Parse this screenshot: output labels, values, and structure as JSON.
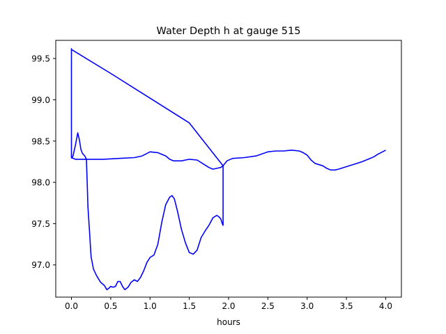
{
  "chart_data": {
    "type": "line",
    "title": "Water Depth h at gauge 515",
    "xlabel": "hours",
    "ylabel": "",
    "xlim": [
      -0.2,
      4.2
    ],
    "ylim": [
      96.61,
      99.72
    ],
    "xticks": [
      0.0,
      0.5,
      1.0,
      1.5,
      2.0,
      2.5,
      3.0,
      3.5,
      4.0
    ],
    "xtick_labels": [
      "0.0",
      "0.5",
      "1.0",
      "1.5",
      "2.0",
      "2.5",
      "3.0",
      "3.5",
      "4.0"
    ],
    "yticks": [
      97.0,
      97.5,
      98.0,
      98.5,
      99.0,
      99.5
    ],
    "ytick_labels": [
      "97.0",
      "97.5",
      "98.0",
      "98.5",
      "99.0",
      "99.5"
    ],
    "grid": false,
    "line_color": "#0000ff",
    "series": [
      {
        "x": [
          0.0,
          0.02,
          0.05,
          0.08,
          0.1,
          0.12,
          0.14,
          0.17,
          0.19,
          0.2,
          0.21,
          0.23,
          0.25,
          0.28,
          0.32,
          0.37,
          0.42,
          0.45,
          0.48,
          0.5,
          0.53,
          0.56,
          0.59,
          0.62,
          0.65,
          0.68,
          0.72,
          0.76,
          0.8,
          0.84,
          0.88,
          0.92,
          0.96,
          1.0,
          1.05,
          1.1,
          1.15,
          1.2,
          1.25,
          1.28,
          1.31,
          1.35,
          1.4,
          1.45,
          1.5,
          1.55,
          1.6,
          1.65,
          1.7,
          1.75,
          1.8,
          1.85,
          1.88,
          1.9,
          1.92,
          1.93,
          1.93,
          1.9,
          1.85,
          1.8,
          1.75,
          1.7,
          1.6,
          1.5,
          1.4,
          1.3,
          1.25,
          1.2,
          1.1,
          1.0,
          0.9,
          0.8,
          0.6,
          0.4,
          0.2,
          0.05,
          0.0,
          0.0,
          0.0,
          0.0,
          0.5,
          1.0,
          1.5,
          1.93,
          1.93,
          1.98,
          2.05,
          2.2,
          2.35,
          2.5,
          2.6,
          2.7,
          2.8,
          2.9,
          2.95,
          3.0,
          3.05,
          3.1,
          3.2,
          3.25,
          3.3,
          3.35,
          3.4,
          3.5,
          3.6,
          3.7,
          3.8,
          3.85,
          3.9,
          4.0
        ],
        "y": [
          98.29,
          98.32,
          98.45,
          98.6,
          98.52,
          98.4,
          98.35,
          98.32,
          98.28,
          98.0,
          97.7,
          97.4,
          97.1,
          96.95,
          96.87,
          96.79,
          96.75,
          96.7,
          96.72,
          96.74,
          96.73,
          96.74,
          96.8,
          96.8,
          96.74,
          96.7,
          96.73,
          96.79,
          96.82,
          96.8,
          96.85,
          96.93,
          97.03,
          97.09,
          97.12,
          97.25,
          97.52,
          97.73,
          97.82,
          97.84,
          97.8,
          97.65,
          97.43,
          97.27,
          97.15,
          97.13,
          97.18,
          97.33,
          97.41,
          97.48,
          97.57,
          97.6,
          97.58,
          97.56,
          97.5,
          97.48,
          98.2,
          98.18,
          98.17,
          98.16,
          98.18,
          98.21,
          98.27,
          98.28,
          98.26,
          98.26,
          98.28,
          98.32,
          98.36,
          98.37,
          98.32,
          98.3,
          98.29,
          98.28,
          98.28,
          98.28,
          98.3,
          99.0,
          99.62,
          99.61,
          99.32,
          99.02,
          98.72,
          98.2,
          98.2,
          98.26,
          98.29,
          98.3,
          98.32,
          98.37,
          98.38,
          98.38,
          98.39,
          98.38,
          98.36,
          98.33,
          98.27,
          98.23,
          98.2,
          98.17,
          98.15,
          98.15,
          98.16,
          98.19,
          98.22,
          98.25,
          98.29,
          98.31,
          98.34,
          98.39
        ]
      }
    ]
  }
}
